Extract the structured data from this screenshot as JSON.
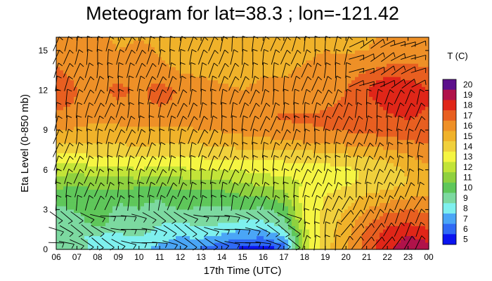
{
  "chart_data": {
    "type": "heatmap",
    "title": "Meteogram for lat=38.3 ; lon=-121.42",
    "xlabel": "17th Time (UTC)",
    "ylabel": "Eta Level (0-850 mb)",
    "x_ticks": [
      "06",
      "07",
      "08",
      "09",
      "10",
      "11",
      "12",
      "13",
      "14",
      "15",
      "16",
      "17",
      "18",
      "19",
      "20",
      "21",
      "22",
      "23",
      "00"
    ],
    "y_ticks": [
      0,
      3,
      6,
      9,
      12,
      15
    ],
    "ylim": [
      0,
      16
    ],
    "colorbar": {
      "title": "T (C)",
      "levels": [
        5,
        6,
        7,
        8,
        9,
        10,
        11,
        12,
        13,
        14,
        15,
        16,
        17,
        18,
        19,
        20
      ],
      "colors": [
        "#0a14f0",
        "#2f6af5",
        "#4aa6f6",
        "#7ef0ee",
        "#7cd9a0",
        "#5fc75a",
        "#8fd13f",
        "#c2e438",
        "#f5f542",
        "#f0d03c",
        "#f0b22a",
        "#ee9027",
        "#e85f20",
        "#e02618",
        "#b0124a",
        "#5c0f8c"
      ]
    },
    "temperature_grid": {
      "x": [
        6,
        7,
        8,
        9,
        10,
        11,
        12,
        13,
        14,
        15,
        16,
        17,
        18,
        19,
        20,
        21,
        22,
        23,
        24
      ],
      "y": [
        0,
        1,
        2,
        3,
        4,
        5,
        6,
        7,
        8,
        9,
        10,
        11,
        12,
        13,
        14,
        15,
        16
      ],
      "values": [
        [
          9.5,
          9.0,
          8.2,
          8.0,
          7.6,
          7.2,
          6.8,
          6.3,
          5.6,
          5.2,
          4.8,
          5.6,
          12.0,
          14.2,
          15.4,
          17.0,
          18.3,
          19.0,
          18.8
        ],
        [
          9.2,
          8.6,
          8.3,
          8.4,
          8.6,
          8.0,
          7.5,
          7.8,
          7.3,
          6.8,
          6.7,
          7.6,
          12.0,
          14.0,
          15.2,
          16.8,
          18.0,
          18.6,
          18.2
        ],
        [
          9.0,
          9.1,
          10.0,
          8.9,
          9.3,
          8.6,
          8.5,
          8.8,
          8.6,
          8.3,
          8.3,
          9.2,
          12.5,
          13.8,
          15.0,
          16.3,
          17.3,
          17.4,
          17.0
        ],
        [
          9.3,
          9.6,
          10.0,
          9.3,
          9.5,
          9.3,
          9.5,
          9.4,
          9.3,
          9.5,
          9.3,
          10.0,
          13.0,
          13.6,
          14.5,
          15.5,
          16.2,
          16.5,
          16.3
        ],
        [
          10.0,
          9.8,
          10.2,
          9.8,
          9.6,
          9.6,
          10.0,
          9.9,
          10.0,
          10.4,
          10.5,
          11.2,
          12.9,
          13.5,
          14.0,
          14.7,
          15.0,
          15.3,
          15.6
        ],
        [
          11.0,
          10.6,
          10.9,
          11.0,
          11.0,
          10.8,
          11.0,
          11.1,
          11.2,
          11.5,
          11.8,
          12.0,
          12.6,
          13.0,
          13.3,
          13.7,
          14.0,
          14.5,
          15.0
        ],
        [
          12.0,
          11.8,
          12.2,
          12.2,
          12.4,
          12.2,
          12.3,
          12.5,
          12.6,
          12.6,
          12.8,
          13.0,
          12.9,
          13.1,
          13.3,
          13.6,
          14.0,
          14.6,
          15.2
        ],
        [
          13.2,
          13.2,
          13.5,
          13.6,
          13.5,
          13.4,
          13.5,
          13.6,
          13.8,
          13.8,
          13.8,
          13.8,
          13.9,
          14.0,
          14.3,
          14.5,
          14.8,
          15.4,
          16.0
        ],
        [
          14.5,
          14.4,
          14.6,
          14.6,
          14.7,
          14.6,
          14.6,
          14.6,
          14.8,
          15.0,
          15.1,
          15.2,
          15.4,
          15.5,
          15.7,
          15.8,
          16.0,
          16.3,
          16.6
        ],
        [
          15.6,
          15.4,
          15.3,
          15.3,
          15.4,
          15.4,
          15.3,
          15.5,
          15.6,
          15.8,
          16.0,
          16.3,
          16.4,
          16.5,
          16.6,
          16.7,
          17.0,
          17.2,
          17.3
        ],
        [
          16.2,
          16.0,
          15.6,
          15.8,
          16.0,
          16.1,
          16.0,
          16.0,
          16.0,
          16.2,
          16.4,
          16.6,
          16.6,
          16.6,
          16.7,
          16.9,
          17.4,
          17.6,
          17.3
        ],
        [
          16.9,
          16.4,
          16.0,
          16.3,
          16.3,
          16.6,
          16.2,
          16.0,
          15.9,
          16.0,
          16.1,
          16.2,
          16.2,
          16.4,
          16.6,
          17.2,
          17.8,
          17.9,
          17.5
        ],
        [
          17.3,
          16.5,
          16.1,
          16.9,
          16.2,
          17.1,
          16.3,
          15.8,
          15.6,
          15.5,
          15.6,
          15.7,
          15.9,
          16.1,
          16.5,
          17.5,
          18.6,
          18.2,
          17.5
        ],
        [
          17.0,
          16.2,
          15.9,
          16.2,
          16.0,
          16.0,
          15.6,
          15.5,
          15.4,
          15.4,
          15.5,
          15.5,
          15.7,
          15.9,
          16.2,
          16.8,
          17.5,
          17.3,
          17.0
        ],
        [
          16.4,
          16.0,
          15.8,
          15.9,
          15.9,
          15.6,
          15.3,
          15.2,
          15.1,
          15.0,
          15.2,
          15.3,
          15.5,
          15.6,
          15.7,
          16.0,
          16.4,
          16.5,
          16.3
        ],
        [
          16.0,
          15.8,
          16.1,
          15.5,
          15.8,
          15.4,
          15.3,
          15.2,
          14.9,
          14.8,
          15.0,
          15.1,
          15.4,
          15.5,
          15.4,
          15.5,
          15.8,
          16.0,
          16.0
        ],
        [
          15.6,
          15.5,
          15.7,
          15.3,
          15.4,
          15.3,
          15.2,
          15.0,
          14.8,
          14.7,
          14.8,
          15.0,
          15.3,
          15.4,
          15.3,
          15.4,
          15.6,
          15.8,
          15.8
        ]
      ]
    }
  }
}
